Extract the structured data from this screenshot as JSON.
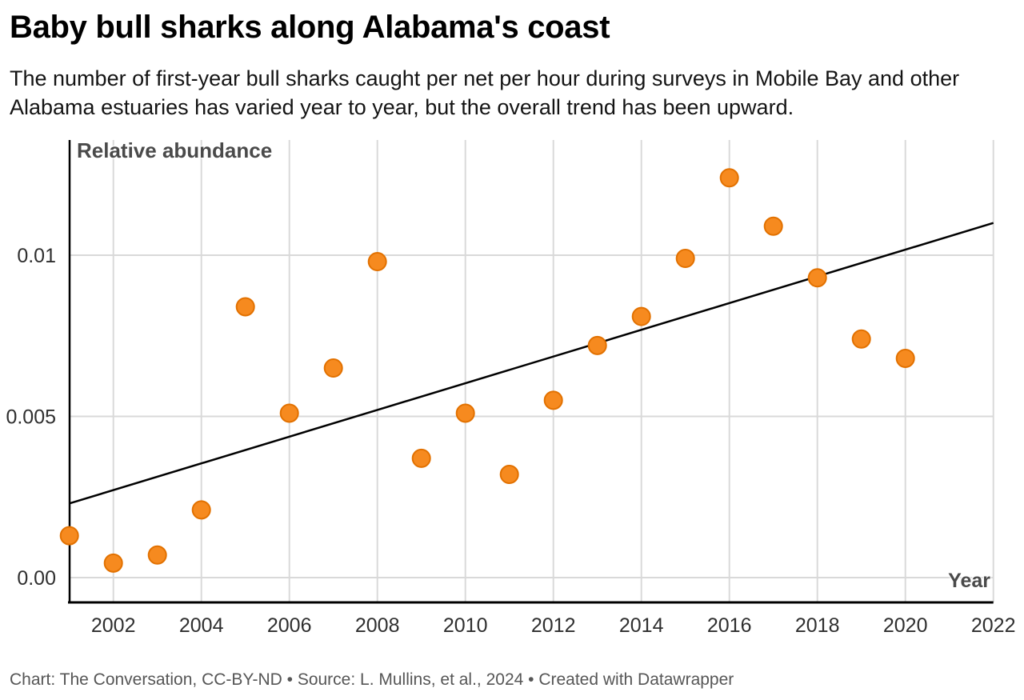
{
  "header": {
    "title": "Baby bull sharks along Alabama's coast",
    "subtitle": "The number of first-year bull sharks caught per net per hour during surveys in Mobile Bay and other Alabama estuaries has varied year to year, but the overall trend has been upward."
  },
  "chart_data": {
    "type": "scatter",
    "title": "Baby bull sharks along Alabama's coast",
    "subtitle": "The number of first-year bull sharks caught per net per hour during surveys in Mobile Bay and other Alabama estuaries has varied year to year, but the overall trend has been upward.",
    "xlabel": "Year",
    "ylabel": "Relative abundance",
    "x": [
      2001,
      2002,
      2003,
      2004,
      2005,
      2006,
      2007,
      2008,
      2009,
      2010,
      2011,
      2012,
      2013,
      2014,
      2015,
      2016,
      2017,
      2018,
      2019,
      2020
    ],
    "y": [
      0.0013,
      0.00045,
      0.0007,
      0.0021,
      0.0084,
      0.0051,
      0.0065,
      0.0098,
      0.0037,
      0.0051,
      0.0032,
      0.0055,
      0.0072,
      0.0081,
      0.0099,
      0.0124,
      0.0109,
      0.0093,
      0.0074,
      0.0068
    ],
    "trend_line": {
      "x": [
        2001,
        2022
      ],
      "y": [
        0.0023,
        0.011
      ]
    },
    "x_ticks": {
      "values": [
        2002,
        2004,
        2006,
        2008,
        2010,
        2012,
        2014,
        2016,
        2018,
        2020,
        2022
      ],
      "labels": [
        "2002",
        "2004",
        "2006",
        "2008",
        "2010",
        "2012",
        "2014",
        "2016",
        "2018",
        "2020",
        "2022"
      ]
    },
    "y_ticks": {
      "values": [
        0,
        0.005,
        0.01
      ],
      "labels": [
        "0.00",
        "0.005",
        "0.01"
      ]
    },
    "xlim": [
      2001,
      2022
    ],
    "ylim": [
      -0.00077,
      0.01357
    ],
    "grid": true,
    "legend": "none",
    "colors": {
      "point_fill": "#F68A1F",
      "point_stroke": "#E27100",
      "trend": "#000000",
      "grid": "#D9D9D9",
      "axis": "#000000",
      "tick_text": "#2F2F2F",
      "axis_label_text": "#4A4A4A"
    }
  },
  "footer": {
    "credit": "Chart: The Conversation, CC-BY-ND • Source: L. Mullins, et al., 2024 • Created with Datawrapper"
  }
}
